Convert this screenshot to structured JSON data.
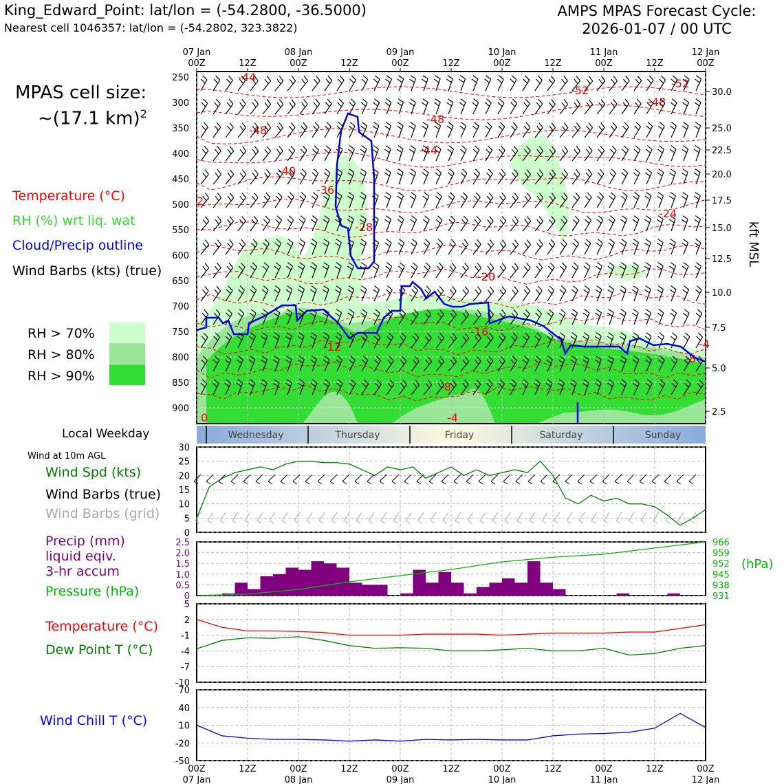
{
  "header": {
    "station_line": "King_Edward_Point: lat/lon = (-54.2800, -36.5000)",
    "cell_line": "Nearest cell 1046357: lat/lon = (-54.2802, 323.3822)",
    "cycle_line1": "AMPS MPAS Forecast Cycle:",
    "cycle_line2": "2026-01-07 / 00 UTC"
  },
  "cell_size": {
    "title": "MPAS cell size:",
    "value": "~(17.1 km)",
    "exponent": "2"
  },
  "colors": {
    "temperature": "#ff0000",
    "rh": "#33dd33",
    "rh70": "#ccffcc",
    "rh80": "#99e699",
    "rh90": "#33dd33",
    "cloud": "#0000ee",
    "wind_speed": "#008000",
    "precip": "#800080",
    "pressure": "#00bb00",
    "dewpoint": "#008000",
    "windchill": "#0000ff",
    "grid_barb": "#aaaaaa"
  },
  "legend": {
    "temperature": "Temperature (°C)",
    "rh": "RH (%) wrt liq. wat",
    "cloud": "Cloud/Precip outline",
    "wind": "Wind Barbs (kts) (true)",
    "rh70": "RH > 70%",
    "rh80": "RH > 80%",
    "rh90": "RH > 90%",
    "weekday_title": "Local Weekday",
    "wind10m": "Wind at 10m AGL",
    "wind_spd": "Wind Spd (kts)",
    "wind_barbs_true": "Wind Barbs (true)",
    "wind_barbs_grid": "Wind Barbs (grid)",
    "precip1": "Precip (mm)",
    "precip2": "liquid eqiv.",
    "precip3": "3-hr accum",
    "pressure": "Pressure (hPa)",
    "temp2": "Temperature (°C)",
    "dew": "Dew Point T (°C)",
    "windchill": "Wind Chill T (°C)"
  },
  "time_axis": {
    "top_labels": [
      {
        "day": "07 Jan",
        "hour": "00Z"
      },
      {
        "day": "",
        "hour": "12Z"
      },
      {
        "day": "08 Jan",
        "hour": "00Z"
      },
      {
        "day": "",
        "hour": "12Z"
      },
      {
        "day": "09 Jan",
        "hour": "00Z"
      },
      {
        "day": "",
        "hour": "12Z"
      },
      {
        "day": "10 Jan",
        "hour": "00Z"
      },
      {
        "day": "",
        "hour": "12Z"
      },
      {
        "day": "11 Jan",
        "hour": "00Z"
      },
      {
        "day": "",
        "hour": "12Z"
      },
      {
        "day": "12 Jan",
        "hour": "00Z"
      }
    ],
    "weekdays": [
      "Wednesday",
      "Thursday",
      "Friday",
      "Saturday",
      "Sunday"
    ]
  },
  "chart_data": [
    {
      "type": "heatmap",
      "name": "time-height cross section",
      "y_left_label": "",
      "y_left_ticks": [
        "250",
        "300",
        "350",
        "400",
        "450",
        "500",
        "550",
        "600",
        "650",
        "700",
        "750",
        "800",
        "850",
        "900"
      ],
      "y_right_label": "kft MSL",
      "y_right_ticks": [
        "30.0",
        "25.0",
        "22.5",
        "20.0",
        "17.5",
        "15.0",
        "12.5",
        "10.0",
        "7.5",
        "5.0",
        "2.5"
      ],
      "x_range_hours": [
        0,
        120
      ],
      "temperature_contour_labels": [
        "-44",
        "-48",
        "-40",
        "-36",
        "-28",
        "-48",
        "-44",
        "-52",
        "-48",
        "-52",
        "-24",
        "-20",
        "-16",
        "-12",
        "-8",
        "-4",
        "-8",
        "-4",
        "0",
        "2"
      ]
    },
    {
      "type": "line",
      "name": "wind speed",
      "ylim": [
        0,
        30
      ],
      "yticks": [
        "0",
        "5",
        "10",
        "15",
        "20",
        "25",
        "30"
      ],
      "x_hours": [
        0,
        3,
        6,
        9,
        12,
        15,
        18,
        21,
        24,
        27,
        30,
        33,
        36,
        39,
        42,
        45,
        48,
        51,
        54,
        57,
        60,
        63,
        66,
        69,
        72,
        75,
        78,
        81,
        84,
        87,
        90,
        93,
        96,
        99,
        102,
        105,
        108,
        111,
        114,
        117,
        120
      ],
      "values": [
        5,
        16,
        19,
        21,
        22,
        23,
        22,
        24,
        25,
        25,
        24.5,
        24.5,
        24,
        22,
        20,
        23,
        22,
        23,
        19,
        21,
        23,
        20,
        22,
        20,
        21,
        22,
        21,
        25,
        20,
        12,
        10,
        13,
        11,
        12,
        10,
        10,
        9,
        6,
        2.5,
        5,
        8
      ]
    },
    {
      "type": "bar",
      "name": "precipitation and pressure",
      "ylim": [
        0,
        2.5
      ],
      "yticks": [
        "0",
        "0.5",
        "1.0",
        "1.5",
        "2.0",
        "2.5"
      ],
      "y2ticks": [
        "931",
        "938",
        "945",
        "952",
        "959",
        "966"
      ],
      "y2label": "(hPa)",
      "x_hours": [
        1.5,
        4.5,
        7.5,
        10.5,
        13.5,
        16.5,
        19.5,
        22.5,
        25.5,
        28.5,
        31.5,
        34.5,
        37.5,
        40.5,
        43.5,
        46.5,
        49.5,
        52.5,
        55.5,
        58.5,
        61.5,
        64.5,
        67.5,
        70.5,
        73.5,
        76.5,
        79.5,
        82.5,
        85.5,
        88.5,
        91.5,
        94.5,
        97.5,
        100.5,
        103.5,
        106.5,
        109.5,
        112.5,
        115.5,
        118.5
      ],
      "precip": [
        0,
        0,
        0.1,
        0.6,
        0.3,
        0.9,
        1.0,
        1.3,
        1.2,
        1.6,
        1.5,
        1.3,
        0.6,
        0.5,
        0.5,
        0,
        0.1,
        1.2,
        0.6,
        1.1,
        0.6,
        0.1,
        0.4,
        0.6,
        0.8,
        0.6,
        1.6,
        0.6,
        0.3,
        0,
        0,
        0,
        0,
        0.1,
        0,
        0,
        0,
        0.1,
        0,
        0
      ],
      "pressure_x_hours": [
        0,
        12,
        24,
        36,
        48,
        60,
        72,
        84,
        96,
        108,
        120
      ],
      "pressure": [
        931,
        932,
        935,
        940,
        944,
        948,
        953,
        956,
        958,
        962,
        966
      ]
    },
    {
      "type": "line",
      "name": "temperature and dew point",
      "ylim": [
        -10,
        5
      ],
      "yticks": [
        "-10",
        "-7",
        "-4",
        "-1",
        "2",
        "5"
      ],
      "x_hours": [
        0,
        6,
        12,
        18,
        24,
        30,
        36,
        42,
        48,
        54,
        60,
        66,
        72,
        78,
        84,
        90,
        96,
        102,
        108,
        114,
        120
      ],
      "temperature": [
        2,
        0.5,
        -0.2,
        -0.2,
        -0.3,
        -0.5,
        -1,
        -1,
        -1,
        -0.8,
        -0.8,
        -0.8,
        -1,
        -0.8,
        -0.6,
        -0.6,
        -0.6,
        -0.4,
        -0.4,
        0.3,
        1
      ],
      "dewpoint": [
        -3.6,
        -2,
        -1.5,
        -1.6,
        -1.3,
        -2,
        -3,
        -3.5,
        -3.4,
        -3.5,
        -4,
        -4,
        -3.8,
        -3.5,
        -4,
        -4,
        -3.5,
        -4.8,
        -4.5,
        -3.5,
        -3
      ]
    },
    {
      "type": "line",
      "name": "wind chill",
      "ylim": [
        -50,
        70
      ],
      "yticks": [
        "-50",
        "-20",
        "10",
        "40",
        "70"
      ],
      "x_hours": [
        0,
        6,
        12,
        18,
        24,
        30,
        36,
        42,
        48,
        54,
        60,
        66,
        72,
        78,
        84,
        90,
        96,
        102,
        108,
        114,
        120
      ],
      "values": [
        10,
        -8,
        -12,
        -14,
        -14,
        -15,
        -17,
        -15,
        -17,
        -14,
        -15,
        -14,
        -15,
        -15,
        -8,
        -5,
        -4,
        -2,
        5,
        30,
        6
      ]
    }
  ],
  "x_bottom": {
    "hours": [
      "00Z",
      "12Z",
      "00Z",
      "12Z",
      "00Z",
      "12Z",
      "00Z",
      "12Z",
      "00Z",
      "12Z",
      "00Z"
    ],
    "days": [
      "07 Jan",
      "",
      "08 Jan",
      "",
      "09 Jan",
      "",
      "10 Jan",
      "",
      "11 Jan",
      "",
      "12 Jan"
    ]
  }
}
